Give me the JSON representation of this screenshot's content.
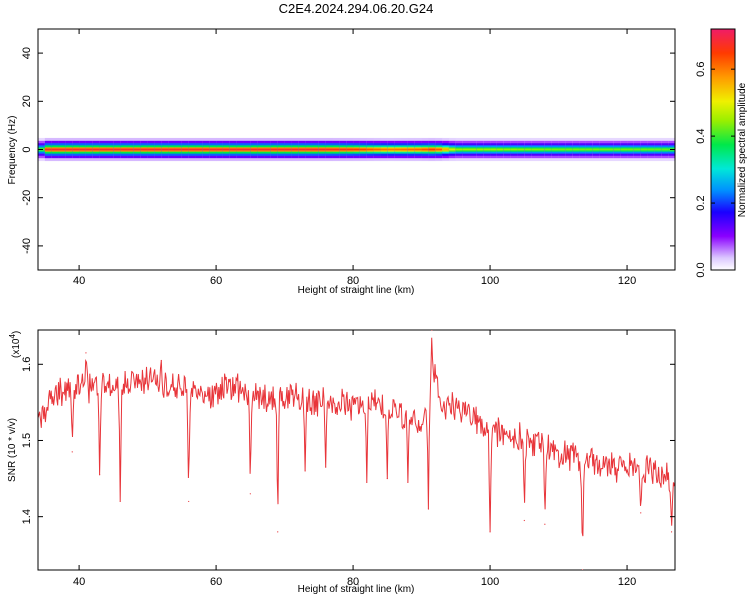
{
  "title": "C2E4.2024.294.06.20.G24",
  "top_plot": {
    "xlabel": "Height of straight line (km)",
    "ylabel": "Frequency (Hz)",
    "xticks": [
      40,
      60,
      80,
      100,
      120
    ],
    "yticks": [
      40,
      20,
      0,
      -20,
      -40
    ],
    "colorbar_label": "Normalized spectral amplitude",
    "colorbar_ticks": [
      "0.0",
      "0.2",
      "0.4",
      "0.6"
    ]
  },
  "bottom_plot": {
    "xlabel": "Height of straight line (km)",
    "ylabel": "SNR (10 * v/v)",
    "yscale_label": "(x10",
    "yscale_exp": "4",
    "yscale_close": ")",
    "xticks": [
      40,
      60,
      80,
      100,
      120
    ],
    "yticks": [
      1.4,
      1.5,
      1.6
    ]
  },
  "colors": {
    "series": "#e8353a",
    "frame": "#000000"
  },
  "chart_data": [
    {
      "type": "heatmap",
      "title": "C2E4.2024.294.06.20.G24",
      "xlabel": "Height of straight line (km)",
      "ylabel": "Frequency (Hz)",
      "xlim": [
        34,
        127
      ],
      "ylim": [
        -50,
        50
      ],
      "colorbar": {
        "label": "Normalized spectral amplitude",
        "range": [
          0.0,
          0.72
        ]
      },
      "band": {
        "center_freq_hz": 0,
        "x": [
          35,
          45,
          55,
          65,
          75,
          80,
          85,
          90,
          92,
          95,
          100,
          110,
          120,
          127
        ],
        "peak_amplitude": [
          0.68,
          0.68,
          0.68,
          0.68,
          0.68,
          0.66,
          0.6,
          0.62,
          0.66,
          0.45,
          0.45,
          0.43,
          0.43,
          0.42
        ]
      }
    },
    {
      "type": "line",
      "xlabel": "Height of straight line (km)",
      "ylabel": "SNR (10 * v/v)",
      "ylabel_multiplier": "x10^4",
      "xlim": [
        34,
        127
      ],
      "ylim": [
        1.33,
        1.645
      ],
      "x": [
        34,
        36,
        38,
        40,
        42,
        44,
        46,
        48,
        50,
        52,
        54,
        56,
        58,
        60,
        62,
        64,
        66,
        68,
        70,
        72,
        74,
        76,
        78,
        80,
        82,
        84,
        86,
        88,
        90,
        91,
        92,
        93,
        94,
        96,
        98,
        100,
        102,
        104,
        106,
        108,
        110,
        112,
        114,
        116,
        118,
        120,
        122,
        124,
        126,
        127
      ],
      "y": [
        1.52,
        1.56,
        1.565,
        1.57,
        1.57,
        1.575,
        1.57,
        1.575,
        1.58,
        1.575,
        1.57,
        1.565,
        1.56,
        1.56,
        1.575,
        1.57,
        1.56,
        1.555,
        1.55,
        1.56,
        1.55,
        1.555,
        1.55,
        1.545,
        1.55,
        1.545,
        1.54,
        1.53,
        1.52,
        1.55,
        1.6,
        1.54,
        1.55,
        1.54,
        1.525,
        1.51,
        1.51,
        1.505,
        1.5,
        1.49,
        1.48,
        1.48,
        1.475,
        1.47,
        1.465,
        1.465,
        1.46,
        1.46,
        1.455,
        1.45
      ],
      "dips": [
        {
          "x": 39,
          "y": 1.485
        },
        {
          "x": 43,
          "y": 1.455
        },
        {
          "x": 46,
          "y": 1.42
        },
        {
          "x": 56,
          "y": 1.42
        },
        {
          "x": 65,
          "y": 1.43
        },
        {
          "x": 69,
          "y": 1.38
        },
        {
          "x": 73,
          "y": 1.46
        },
        {
          "x": 76,
          "y": 1.465
        },
        {
          "x": 82,
          "y": 1.445
        },
        {
          "x": 85,
          "y": 1.45
        },
        {
          "x": 88,
          "y": 1.445
        },
        {
          "x": 91,
          "y": 1.41
        },
        {
          "x": 100,
          "y": 1.38
        },
        {
          "x": 105,
          "y": 1.395
        },
        {
          "x": 108,
          "y": 1.39
        },
        {
          "x": 113.5,
          "y": 1.33
        },
        {
          "x": 122,
          "y": 1.405
        },
        {
          "x": 126.5,
          "y": 1.38
        }
      ],
      "peaks": [
        {
          "x": 41,
          "y": 1.615
        },
        {
          "x": 52,
          "y": 1.605
        },
        {
          "x": 91.5,
          "y": 1.645
        }
      ]
    }
  ]
}
